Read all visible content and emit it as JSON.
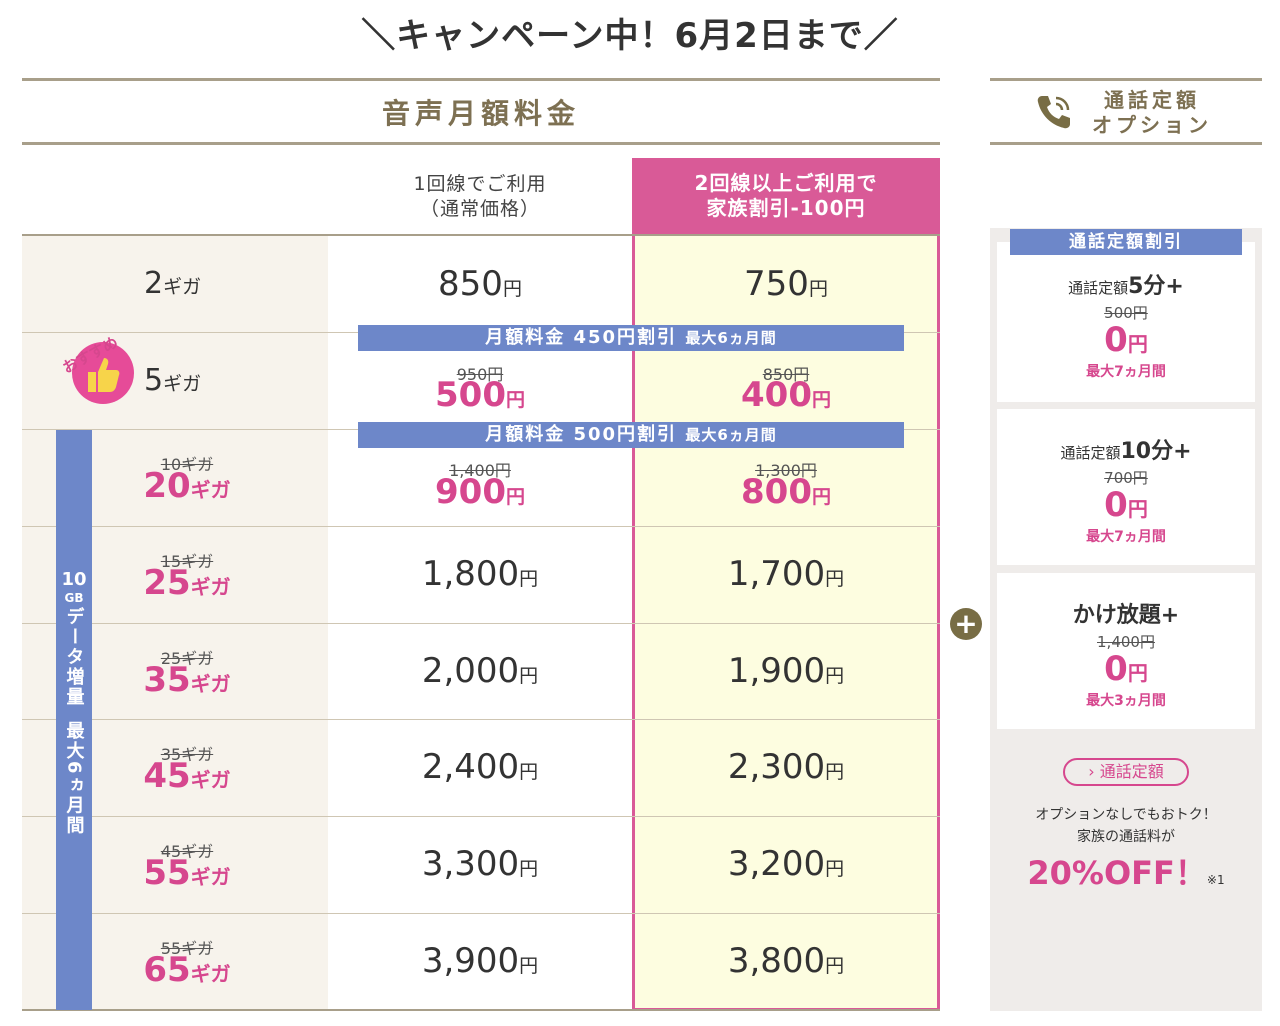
{
  "campaign": {
    "title": "＼キャンペーン中！6月2日まで／"
  },
  "voice_section": {
    "title": "音声月額料金"
  },
  "call_option": {
    "title_line1": "通話定額",
    "title_line2": "オプション"
  },
  "columns": {
    "single_line1": "1回線でご利用",
    "single_line2": "（通常価格）",
    "family_line1": "2回線以上ご利用で",
    "family_line2": "家族割引-100円"
  },
  "yen": "円",
  "giga": "ギガ",
  "rows": [
    {
      "size": "2",
      "single": "850",
      "family": "750"
    },
    {
      "size": "5",
      "single_old": "950円",
      "single": "500",
      "family_old": "850円",
      "family": "400"
    },
    {
      "size_old": "10ギガ",
      "size": "20",
      "single_old": "1,400円",
      "single": "900",
      "family_old": "1,300円",
      "family": "800"
    },
    {
      "size_old": "15ギガ",
      "size": "25",
      "single": "1,800",
      "family": "1,700"
    },
    {
      "size_old": "25ギガ",
      "size": "35",
      "single": "2,000",
      "family": "1,900"
    },
    {
      "size_old": "35ギガ",
      "size": "45",
      "single": "2,400",
      "family": "2,300"
    },
    {
      "size_old": "45ギガ",
      "size": "55",
      "single": "3,300",
      "family": "3,200"
    },
    {
      "size_old": "55ギガ",
      "size": "65",
      "single": "3,900",
      "family": "3,800"
    }
  ],
  "banners": {
    "b1_main": "月額料金 450円割引",
    "b1_sub": "最大6ヵ月間",
    "b2_main": "月額料金 500円割引",
    "b2_sub": "最大6ヵ月間"
  },
  "recommend": {
    "label": "おすすめ"
  },
  "data_increase": {
    "line1": "10",
    "line2": "GB",
    "line3": "データ増量",
    "line4": "最大6ヵ月間"
  },
  "discount_tag": "通話定額割引",
  "cards": [
    {
      "name_a": "通話定額",
      "name_b": "5分+",
      "old": "500円",
      "price": "0",
      "period": "最大7ヵ月間"
    },
    {
      "name_a": "通話定額",
      "name_b": "10分+",
      "old": "700円",
      "price": "0",
      "period": "最大7ヵ月間"
    },
    {
      "name_a": "",
      "name_b": "かけ放題+",
      "old": "1,400円",
      "price": "0",
      "period": "最大3ヵ月間"
    }
  ],
  "plus_symbol": "+",
  "link_label": "通話定額",
  "note": {
    "line1": "オプションなしでもおトク！",
    "line2": "家族の通話料が",
    "big": "20%OFF！",
    "mark": "※1"
  },
  "colors": {
    "pink": "#d95a97",
    "blue": "#6d87c9",
    "gold": "#7d7052",
    "cream": "#fdfde0"
  }
}
